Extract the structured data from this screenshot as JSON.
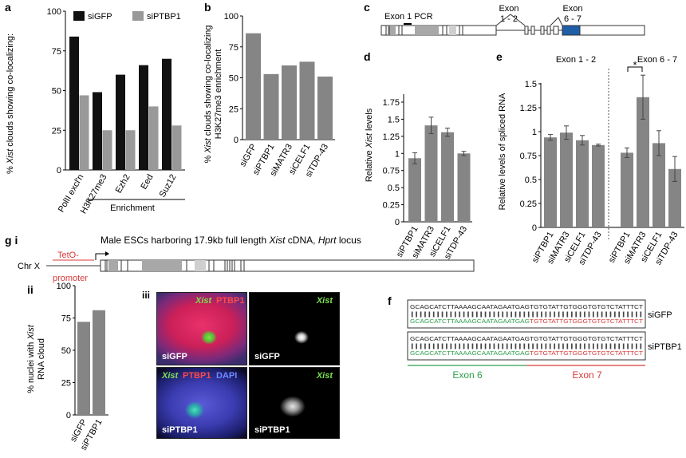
{
  "panel_letters": {
    "a": "a",
    "b": "b",
    "c": "c",
    "d": "d",
    "e": "e",
    "f": "f",
    "g": "g i",
    "gii": "ii",
    "giii": "iii"
  },
  "colors": {
    "dark_bar": "#111111",
    "light_bar": "#999999",
    "gray_bar": "#858585",
    "exon_blue": "#1f5fa8",
    "green": "#2e9e4a",
    "red": "#d83a3a"
  },
  "chart_data": [
    {
      "id": "a",
      "type": "bar",
      "ylabel": "% Xist clouds showing co-localizing:",
      "ylim": [
        0,
        100
      ],
      "yticks": [
        "0",
        "25",
        "50",
        "75",
        "100"
      ],
      "categories": [
        "PolII excl'n",
        "H3K27me3",
        "Ezh2",
        "Eed",
        "Suz12"
      ],
      "series": [
        {
          "name": "siGFP",
          "values": [
            84,
            49,
            60,
            66,
            70
          ]
        },
        {
          "name": "siPTBP1",
          "values": [
            47,
            25,
            25,
            40,
            28
          ]
        }
      ],
      "bracket_label": "Enrichment",
      "legend": "top"
    },
    {
      "id": "b",
      "type": "bar",
      "ylabel_line1": "% Xist clouds showing co-localizing",
      "ylabel_line2": "H3K27me3 enrichment",
      "ylim": [
        0,
        100
      ],
      "yticks": [
        "0",
        "25",
        "50",
        "75",
        "100"
      ],
      "categories": [
        "siGFP",
        "siPTBP1",
        "siMATR3",
        "siCELF1",
        "siTDP-43"
      ],
      "values": [
        86,
        53,
        60,
        63,
        51
      ]
    },
    {
      "id": "d",
      "type": "bar",
      "ylabel": "Relative Xist levels",
      "ylim": [
        0,
        1.75
      ],
      "yticks": [
        "0",
        "0.25",
        "0.5",
        "0.75",
        "1",
        "1.25",
        "1.5",
        "1.75"
      ],
      "categories": [
        "siPTBP1",
        "siMATR3",
        "siCELF1",
        "siTDP-43"
      ],
      "values": [
        0.93,
        1.41,
        1.31,
        1.0
      ],
      "errors": [
        0.08,
        0.12,
        0.06,
        0.03
      ]
    },
    {
      "id": "e",
      "type": "bar",
      "ylabel": "Relative levels of spliced RNA",
      "ylim": [
        0,
        1.5
      ],
      "yticks": [
        "0",
        "0.25",
        "0.5",
        "0.75",
        "1",
        "1.25",
        "1.5"
      ],
      "groups": [
        {
          "title": "Exon 1 - 2",
          "categories": [
            "siPTBP1",
            "siMATR3",
            "siCELF1",
            "siTDP-43"
          ],
          "values": [
            0.94,
            0.99,
            0.91,
            0.86
          ],
          "errors": [
            0.03,
            0.07,
            0.05,
            0.01
          ]
        },
        {
          "title": "Exon 6 - 7",
          "categories": [
            "siPTBP1",
            "siMATR3",
            "siCELF1",
            "siTDP-43"
          ],
          "values": [
            0.78,
            1.36,
            0.88,
            0.61
          ],
          "errors": [
            0.05,
            0.23,
            0.13,
            0.13
          ]
        }
      ],
      "significance": "*"
    },
    {
      "id": "gii",
      "type": "bar",
      "ylabel_line1": "% nuclei with Xist",
      "ylabel_line2": "RNA cloud",
      "ylim": [
        0,
        100
      ],
      "yticks": [
        "0",
        "25",
        "50",
        "75",
        "100"
      ],
      "categories": [
        "siGFP",
        "siPTBP1"
      ],
      "values": [
        72,
        81
      ]
    }
  ],
  "panel_c": {
    "exon1_pcr": "Exon 1 PCR",
    "exon12": "Exon\n1 - 2",
    "exon67": "Exon\n6 - 7"
  },
  "panel_g": {
    "title_prefix": "Male ESCs harboring 17.9kb full length ",
    "title_xist": "Xist",
    "title_mid": " cDNA, ",
    "title_hprt": "Hprt",
    "title_suffix": " locus",
    "chr": "Chr X",
    "teto": "TetO-",
    "promoter": "promoter"
  },
  "micrographs": [
    {
      "label_green": "Xist",
      "label_red": "PTBP1",
      "label_bottom": "siGFP"
    },
    {
      "label_green": "Xist",
      "label_bottom": "siGFP"
    },
    {
      "label_green": "Xist",
      "label_red": "PTBP1",
      "label_blue": "DAPI",
      "label_bottom": "siPTBP1"
    },
    {
      "label_green": "Xist",
      "label_bottom": "siPTBP1"
    }
  ],
  "panel_f": {
    "black_seq": "GCAGCATCTTAAAAGCAATAGAATGAGTGTGTATTGTGGGTGTGTCTATTTCT",
    "green_seq": "GCAGCATCTTAAAAGCAATAGAATGAG",
    "red_seq": "TGTGTATTGTGGGTGTGTCTATTTCT",
    "label1": "siGFP",
    "label2": "siPTBP1",
    "exon6": "Exon 6",
    "exon7": "Exon 7"
  }
}
